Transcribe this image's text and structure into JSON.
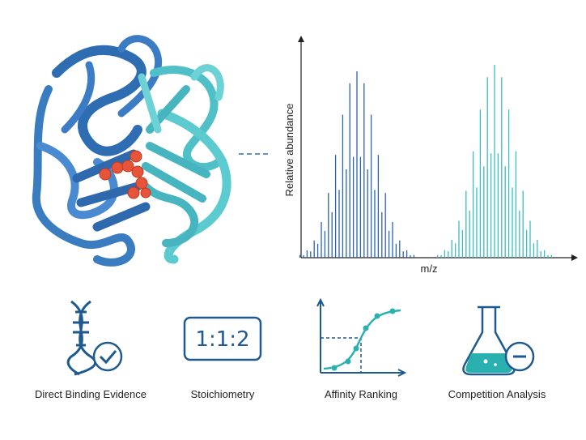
{
  "spectrum": {
    "y_label": "Relative abundance",
    "x_label": "m/z"
  },
  "features": [
    {
      "label": "Direct Binding Evidence"
    },
    {
      "label": "Stoichiometry",
      "icon_text": "1:1:2"
    },
    {
      "label": "Affinity Ranking"
    },
    {
      "label": "Competition Analysis"
    }
  ]
}
